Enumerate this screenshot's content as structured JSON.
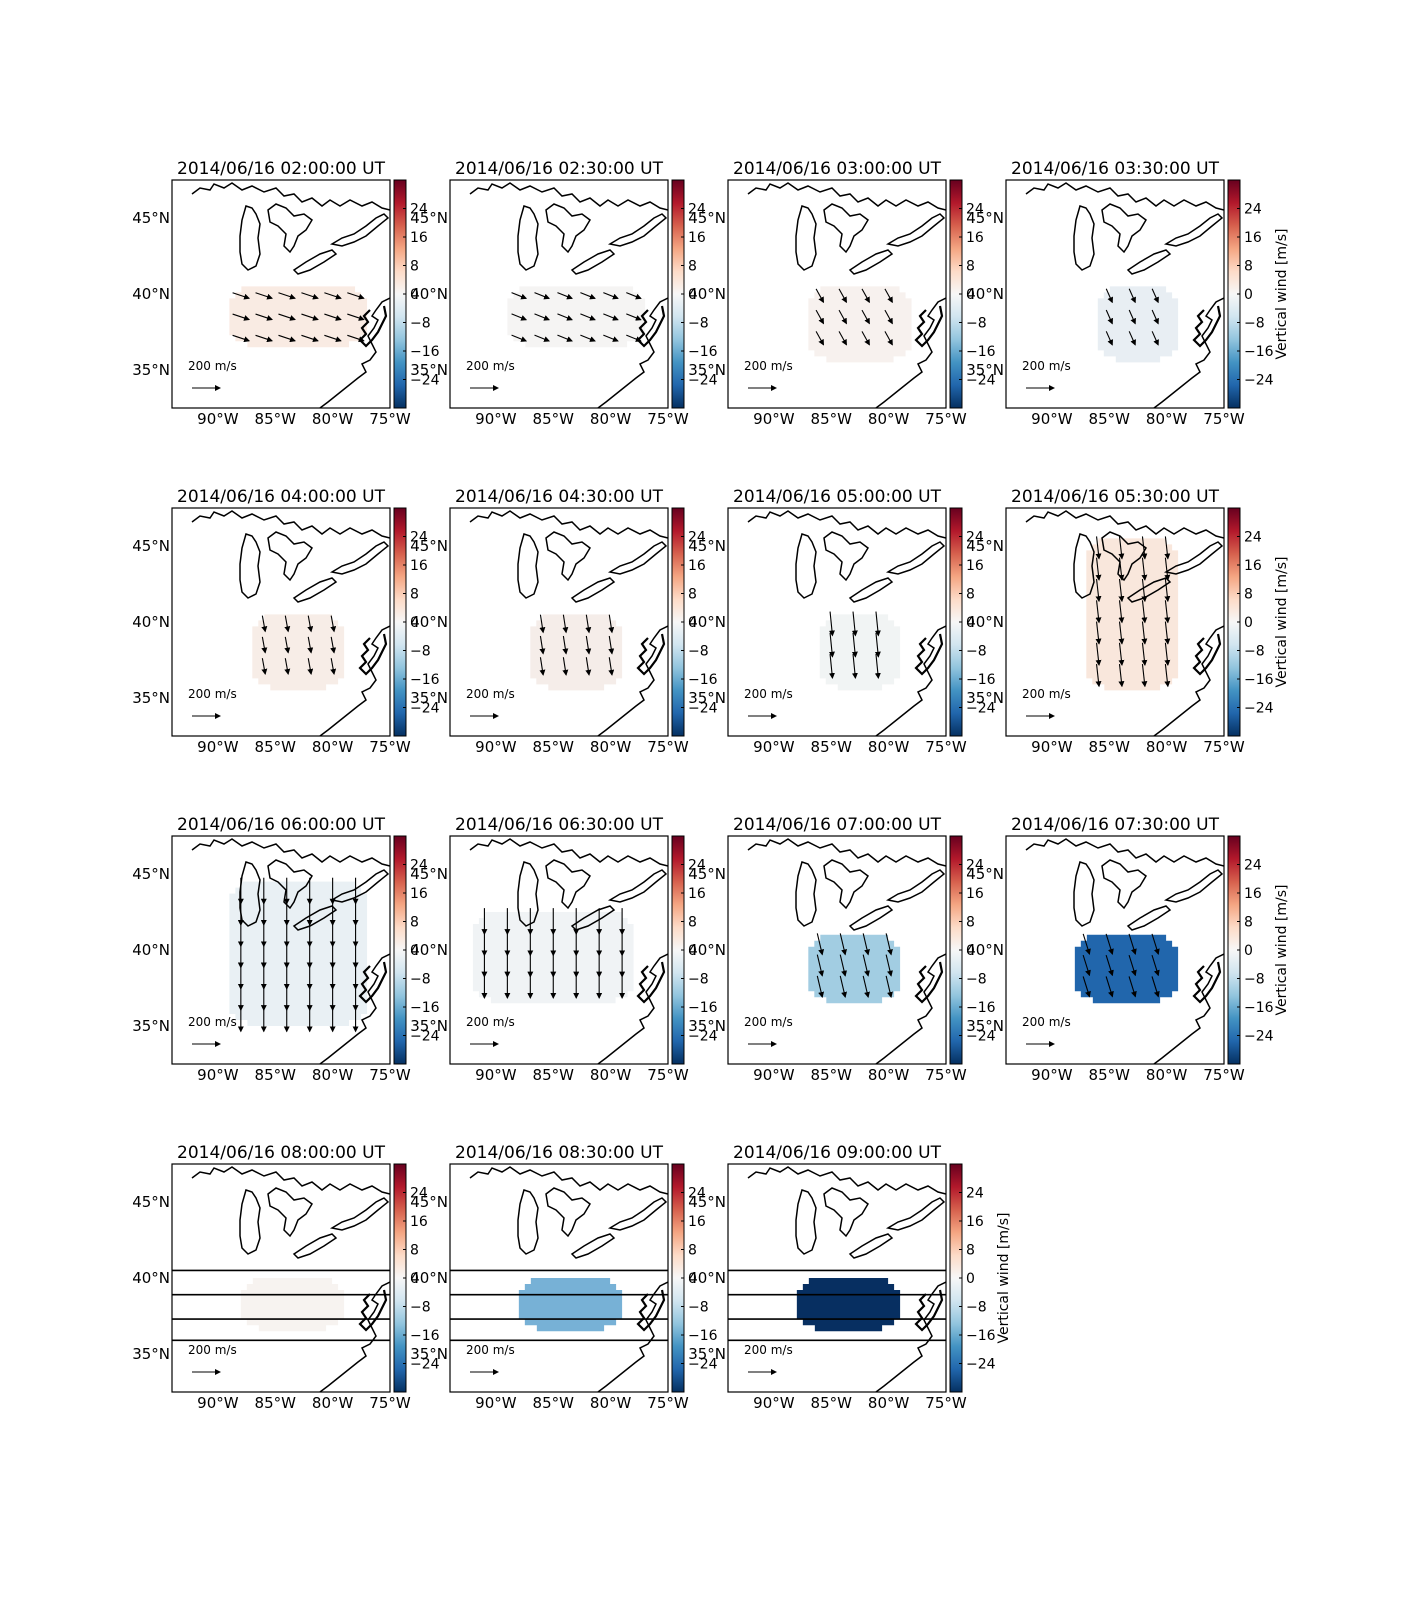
{
  "figure": {
    "colorbar_label": "Vertical wind [m/s]",
    "colorbar_ticks": [
      "24",
      "16",
      "8",
      "0",
      "−8",
      "−16",
      "−24"
    ],
    "colorbar_range": [
      -32,
      32
    ],
    "lon_ticks": [
      "90°W",
      "85°W",
      "80°W",
      "75°W"
    ],
    "lat_ticks": [
      "45°N",
      "40°N",
      "35°N"
    ],
    "lon_range": [
      -94,
      -75
    ],
    "lat_range": [
      32.5,
      47.5
    ],
    "scale_label": "200 m/s",
    "scale_value": 200,
    "colormap": [
      "#053061",
      "#2166ac",
      "#4393c3",
      "#92c5de",
      "#d1e5f0",
      "#f7f7f7",
      "#fddbc7",
      "#f4a582",
      "#d6604d",
      "#b2182b",
      "#67001f"
    ]
  },
  "panels": [
    {
      "title": "2014/06/16 02:00:00 UT",
      "vertical_wind": 2,
      "fill": "#f9ebe3",
      "show_colorbar_label": false,
      "region": {
        "lon": [
          -89,
          -77
        ],
        "lat": [
          36.5,
          40.5
        ]
      },
      "vector": {
        "u": 12,
        "v": -4
      }
    },
    {
      "title": "2014/06/16 02:30:00 UT",
      "vertical_wind": 0.5,
      "fill": "#f5f4f3",
      "show_colorbar_label": false,
      "region": {
        "lon": [
          -89,
          -77
        ],
        "lat": [
          36.5,
          40.5
        ]
      },
      "vector": {
        "u": 10,
        "v": -4
      }
    },
    {
      "title": "2014/06/16 03:00:00 UT",
      "vertical_wind": 1,
      "fill": "#f7f1ee",
      "show_colorbar_label": false,
      "region": {
        "lon": [
          -87,
          -78
        ],
        "lat": [
          35.5,
          40.5
        ]
      },
      "vector": {
        "u": 5,
        "v": -9
      }
    },
    {
      "title": "2014/06/16 03:30:00 UT",
      "vertical_wind": -1,
      "fill": "#e8eef3",
      "show_colorbar_label": true,
      "region": {
        "lon": [
          -86,
          -79
        ],
        "lat": [
          35.5,
          40.5
        ]
      },
      "vector": {
        "u": 4,
        "v": -9
      }
    },
    {
      "title": "2014/06/16 04:00:00 UT",
      "vertical_wind": 1,
      "fill": "#f7ede7",
      "show_colorbar_label": false,
      "region": {
        "lon": [
          -87,
          -79
        ],
        "lat": [
          35.5,
          40.5
        ]
      },
      "vector": {
        "u": 2,
        "v": -11
      }
    },
    {
      "title": "2014/06/16 04:30:00 UT",
      "vertical_wind": 1,
      "fill": "#f5ede9",
      "show_colorbar_label": false,
      "region": {
        "lon": [
          -87,
          -79
        ],
        "lat": [
          35.5,
          40.5
        ]
      },
      "vector": {
        "u": 2,
        "v": -13
      }
    },
    {
      "title": "2014/06/16 05:00:00 UT",
      "vertical_wind": -0.5,
      "fill": "#f1f4f4",
      "show_colorbar_label": false,
      "region": {
        "lon": [
          -86,
          -79
        ],
        "lat": [
          35.5,
          40.5
        ]
      },
      "vector": {
        "u": 2,
        "v": -20
      }
    },
    {
      "title": "2014/06/16 05:30:00 UT",
      "vertical_wind": 3,
      "fill": "#f9e7dc",
      "show_colorbar_label": true,
      "region": {
        "lon": [
          -87,
          -79
        ],
        "lat": [
          35.5,
          45.5
        ]
      },
      "vector": {
        "u": 2,
        "v": -18
      }
    },
    {
      "title": "2014/06/16 06:00:00 UT",
      "vertical_wind": -1,
      "fill": "#e9f0f4",
      "show_colorbar_label": false,
      "region": {
        "lon": [
          -89,
          -77
        ],
        "lat": [
          35,
          44.5
        ]
      },
      "vector": {
        "u": 0,
        "v": -25
      }
    },
    {
      "title": "2014/06/16 06:30:00 UT",
      "vertical_wind": -0.5,
      "fill": "#f0f3f5",
      "show_colorbar_label": false,
      "region": {
        "lon": [
          -92,
          -78
        ],
        "lat": [
          36.5,
          42.5
        ]
      },
      "vector": {
        "u": 0,
        "v": -25
      }
    },
    {
      "title": "2014/06/16 07:00:00 UT",
      "vertical_wind": -10,
      "fill": "#a2cde2",
      "show_colorbar_label": false,
      "region": {
        "lon": [
          -87,
          -79
        ],
        "lat": [
          36.5,
          41
        ]
      },
      "vector": {
        "u": 4,
        "v": -17
      }
    },
    {
      "title": "2014/06/16 07:30:00 UT",
      "vertical_wind": -20,
      "fill": "#2166ac",
      "show_colorbar_label": true,
      "region": {
        "lon": [
          -88,
          -79
        ],
        "lat": [
          36.5,
          41
        ]
      },
      "vector": {
        "u": 5,
        "v": -16
      }
    },
    {
      "title": "2014/06/16 08:00:00 UT",
      "vertical_wind": 0.5,
      "fill": "#f7f3f0",
      "show_colorbar_label": false,
      "region": {
        "lon": [
          -88,
          -79
        ],
        "lat": [
          36.5,
          40
        ]
      },
      "vector": null
    },
    {
      "title": "2014/06/16 08:30:00 UT",
      "vertical_wind": -12,
      "fill": "#77b1d6",
      "show_colorbar_label": false,
      "region": {
        "lon": [
          -88,
          -79
        ],
        "lat": [
          36.5,
          40
        ]
      },
      "vector": null
    },
    {
      "title": "2014/06/16 09:00:00 UT",
      "vertical_wind": -30,
      "fill": "#072f61",
      "show_colorbar_label": true,
      "region": {
        "lon": [
          -88,
          -79
        ],
        "lat": [
          36.5,
          40
        ]
      },
      "vector": null
    }
  ],
  "latitude_lines": [
    40.5,
    38.9,
    37.3,
    35.9
  ]
}
